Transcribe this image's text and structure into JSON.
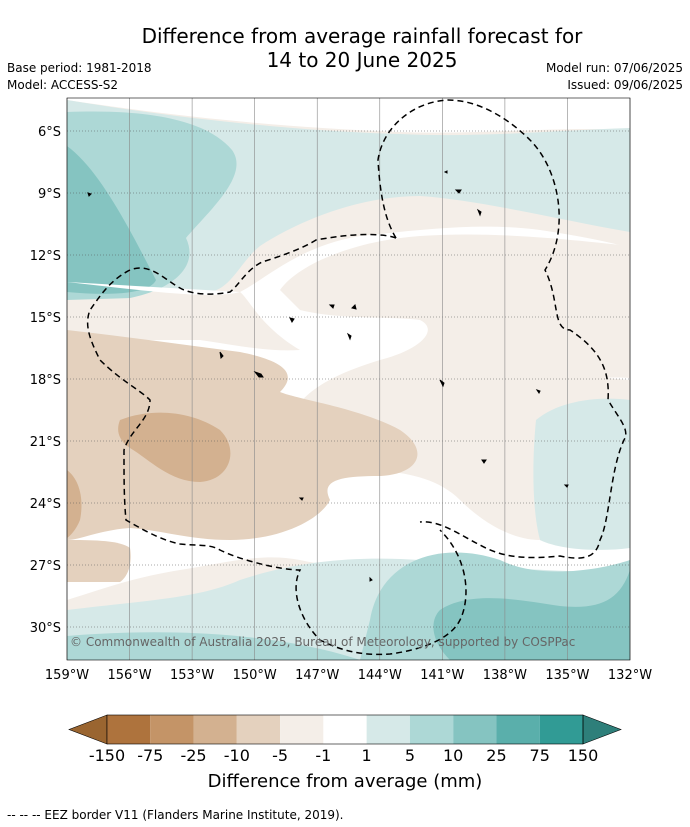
{
  "title_line1": "Difference from average rainfall forecast for",
  "title_line2": "14 to 20 June 2025",
  "base_period": "Base period: 1981-2018",
  "model": "Model: ACCESS-S2",
  "model_run": "Model run: 07/06/2025",
  "issued": "Issued: 09/06/2025",
  "copyright": "© Commonwealth of Australia 2025, Bureau of Meteorology, supported by COSPPac",
  "lat_labels": [
    "6°S",
    "9°S",
    "12°S",
    "15°S",
    "18°S",
    "21°S",
    "24°S",
    "27°S",
    "30°S"
  ],
  "lon_labels": [
    "159°W",
    "156°W",
    "153°W",
    "150°W",
    "147°W",
    "144°W",
    "141°W",
    "138°W",
    "135°W",
    "132°W"
  ],
  "colorbar": {
    "ticks": [
      "-150",
      "-75",
      "-25",
      "-10",
      "-5",
      "-1",
      "1",
      "5",
      "10",
      "25",
      "75",
      "150"
    ],
    "colors": [
      "#ae733d",
      "#c49467",
      "#d3b190",
      "#e4d1be",
      "#f4eee8",
      "#ffffff",
      "#d6e9e8",
      "#add8d6",
      "#85c4c1",
      "#5aafab",
      "#319b95"
    ],
    "extend_low_color": "#9a6530",
    "extend_high_color": "#2e7f7a",
    "title": "Difference from average (mm)"
  },
  "legend_note": "--  --  -- EEZ border V11 (Flanders Marine Institute, 2019)."
}
